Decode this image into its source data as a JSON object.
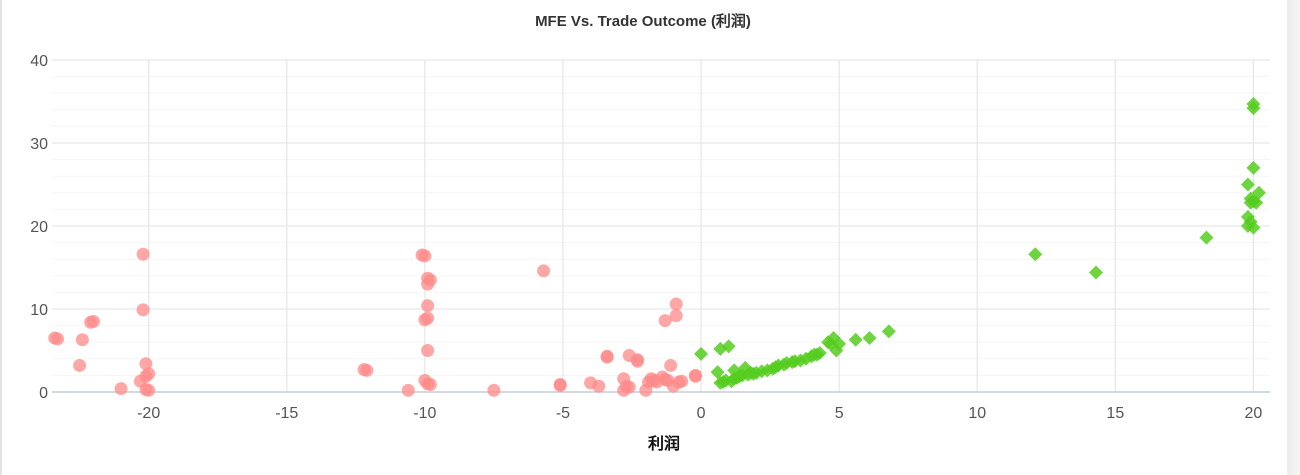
{
  "chart_data": {
    "type": "scatter",
    "title": "MFE Vs. Trade Outcome (利润)",
    "xlabel": "利润",
    "ylabel": "",
    "xlim": [
      -23.5,
      20.6
    ],
    "ylim": [
      0,
      40
    ],
    "x_ticks": [
      -20,
      -15,
      -10,
      -5,
      0,
      5,
      10,
      15,
      20
    ],
    "y_ticks": [
      0,
      10,
      20,
      30,
      40
    ],
    "x_tick_labels": [
      "-20",
      "-15",
      "-10",
      "-5",
      "0",
      "5",
      "10",
      "15",
      "20"
    ],
    "y_tick_labels": [
      "0",
      "10",
      "20",
      "30",
      "40"
    ],
    "grid": true,
    "legend": "none",
    "series": [
      {
        "marker": "circle",
        "color": "#ff8a8a",
        "points": [
          [
            -23.4,
            6.5
          ],
          [
            -23.3,
            6.4
          ],
          [
            -22.4,
            6.3
          ],
          [
            -22.5,
            3.2
          ],
          [
            -22.1,
            8.4
          ],
          [
            -22.0,
            8.5
          ],
          [
            -21.0,
            0.4
          ],
          [
            -20.2,
            16.6
          ],
          [
            -20.2,
            9.9
          ],
          [
            -20.1,
            3.4
          ],
          [
            -20.0,
            2.2
          ],
          [
            -20.1,
            1.9
          ],
          [
            -20.3,
            1.3
          ],
          [
            -20.1,
            0.3
          ],
          [
            -20.0,
            0.2
          ],
          [
            -12.2,
            2.7
          ],
          [
            -12.1,
            2.6
          ],
          [
            -10.1,
            16.5
          ],
          [
            -10.0,
            16.4
          ],
          [
            -9.9,
            13.7
          ],
          [
            -9.8,
            13.5
          ],
          [
            -9.9,
            13.0
          ],
          [
            -9.9,
            10.4
          ],
          [
            -10.0,
            8.7
          ],
          [
            -9.9,
            8.9
          ],
          [
            -9.9,
            5.0
          ],
          [
            -10.0,
            1.4
          ],
          [
            -9.9,
            1.0
          ],
          [
            -9.8,
            0.9
          ],
          [
            -10.6,
            0.2
          ],
          [
            -7.5,
            0.2
          ],
          [
            -5.7,
            14.6
          ],
          [
            -5.1,
            0.9
          ],
          [
            -5.1,
            0.8
          ],
          [
            -4.0,
            1.1
          ],
          [
            -3.7,
            0.7
          ],
          [
            -3.4,
            4.3
          ],
          [
            -3.4,
            4.2
          ],
          [
            -2.6,
            4.4
          ],
          [
            -2.3,
            3.9
          ],
          [
            -2.3,
            3.7
          ],
          [
            -2.8,
            1.6
          ],
          [
            -2.7,
            0.7
          ],
          [
            -2.6,
            0.6
          ],
          [
            -2.8,
            0.2
          ],
          [
            -2.0,
            0.2
          ],
          [
            -1.8,
            1.6
          ],
          [
            -1.7,
            1.4
          ],
          [
            -1.6,
            1.2
          ],
          [
            -1.9,
            1.2
          ],
          [
            -1.4,
            1.8
          ],
          [
            -1.3,
            1.5
          ],
          [
            -1.2,
            1.4
          ],
          [
            -1.3,
            8.6
          ],
          [
            -1.1,
            3.2
          ],
          [
            -0.9,
            10.6
          ],
          [
            -0.9,
            9.2
          ],
          [
            -1.0,
            0.7
          ],
          [
            -0.8,
            1.2
          ],
          [
            -0.7,
            1.3
          ],
          [
            -0.2,
            1.9
          ],
          [
            -0.2,
            2.0
          ]
        ]
      },
      {
        "marker": "diamond",
        "color": "#55cc1e",
        "points": [
          [
            0.0,
            4.6
          ],
          [
            0.6,
            2.4
          ],
          [
            0.7,
            5.2
          ],
          [
            1.0,
            5.5
          ],
          [
            0.7,
            1.1
          ],
          [
            0.8,
            1.2
          ],
          [
            0.9,
            1.4
          ],
          [
            1.1,
            1.3
          ],
          [
            1.2,
            1.6
          ],
          [
            1.2,
            2.6
          ],
          [
            1.3,
            1.7
          ],
          [
            1.4,
            1.9
          ],
          [
            1.5,
            2.0
          ],
          [
            1.6,
            2.9
          ],
          [
            1.7,
            2.1
          ],
          [
            1.8,
            2.3
          ],
          [
            1.9,
            2.2
          ],
          [
            2.0,
            2.3
          ],
          [
            2.2,
            2.5
          ],
          [
            2.4,
            2.6
          ],
          [
            2.6,
            2.8
          ],
          [
            2.7,
            3.0
          ],
          [
            2.8,
            3.2
          ],
          [
            3.0,
            3.3
          ],
          [
            3.1,
            3.5
          ],
          [
            3.3,
            3.6
          ],
          [
            3.4,
            3.7
          ],
          [
            3.6,
            3.8
          ],
          [
            3.8,
            4.0
          ],
          [
            4.0,
            4.3
          ],
          [
            4.1,
            4.5
          ],
          [
            4.2,
            4.5
          ],
          [
            4.3,
            4.7
          ],
          [
            4.6,
            6.0
          ],
          [
            4.7,
            5.8
          ],
          [
            4.8,
            6.5
          ],
          [
            4.9,
            5.0
          ],
          [
            5.0,
            5.8
          ],
          [
            5.6,
            6.3
          ],
          [
            6.1,
            6.5
          ],
          [
            6.8,
            7.3
          ],
          [
            12.1,
            16.6
          ],
          [
            14.3,
            14.4
          ],
          [
            18.3,
            18.6
          ],
          [
            19.8,
            20.0
          ],
          [
            19.8,
            21.1
          ],
          [
            19.8,
            25.0
          ],
          [
            19.9,
            20.5
          ],
          [
            19.9,
            22.8
          ],
          [
            19.9,
            23.3
          ],
          [
            20.0,
            19.8
          ],
          [
            20.0,
            23.0
          ],
          [
            20.1,
            22.8
          ],
          [
            20.2,
            24.0
          ],
          [
            20.0,
            27.0
          ],
          [
            20.0,
            34.2
          ],
          [
            20.0,
            34.7
          ]
        ]
      }
    ]
  }
}
